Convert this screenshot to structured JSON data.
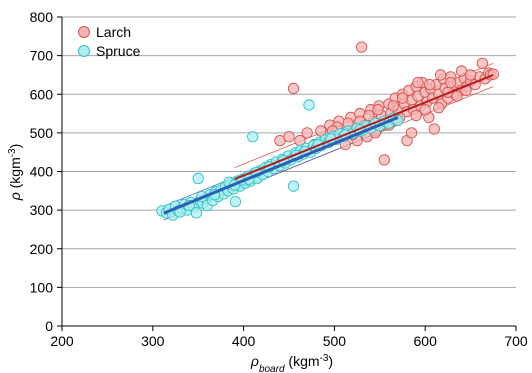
{
  "chart_data": {
    "type": "scatter",
    "title": "",
    "xlabel": {
      "symbol": "ρ",
      "sub": "board",
      "unit": " (kgm",
      "sup": "-3",
      "close": ")"
    },
    "ylabel": {
      "symbol": "ρ",
      "unit": " (kgm",
      "sup": "-3",
      "close": ")"
    },
    "xlim": [
      200,
      700
    ],
    "ylim": [
      0,
      800
    ],
    "xticks": [
      "200",
      "300",
      "400",
      "500",
      "600",
      "700"
    ],
    "yticks": [
      "0",
      "100",
      "200",
      "300",
      "400",
      "500",
      "600",
      "700",
      "800"
    ],
    "grid": "horizontal",
    "legend_position": "top-left",
    "series": [
      {
        "name": "Larch",
        "marker_fill": "#f4b4b4",
        "marker_stroke": "#d9534f",
        "fit_color": "#b71c1c",
        "band_color": "#e53935",
        "fit": {
          "x": [
            390,
            675
          ],
          "y": [
            380,
            650
          ]
        },
        "band_offset": 30,
        "points": [
          [
            440,
            480
          ],
          [
            450,
            490
          ],
          [
            455,
            615
          ],
          [
            462,
            480
          ],
          [
            470,
            500
          ],
          [
            478,
            470
          ],
          [
            485,
            505
          ],
          [
            490,
            475
          ],
          [
            495,
            520
          ],
          [
            500,
            490
          ],
          [
            505,
            530
          ],
          [
            510,
            500
          ],
          [
            512,
            470
          ],
          [
            518,
            540
          ],
          [
            522,
            510
          ],
          [
            525,
            480
          ],
          [
            528,
            550
          ],
          [
            530,
            722
          ],
          [
            533,
            520
          ],
          [
            536,
            490
          ],
          [
            540,
            560
          ],
          [
            543,
            530
          ],
          [
            546,
            505
          ],
          [
            549,
            570
          ],
          [
            552,
            545
          ],
          [
            555,
            430
          ],
          [
            557,
            520
          ],
          [
            560,
            575
          ],
          [
            562,
            550
          ],
          [
            565,
            530
          ],
          [
            567,
            590
          ],
          [
            570,
            560
          ],
          [
            572,
            540
          ],
          [
            575,
            600
          ],
          [
            577,
            575
          ],
          [
            580,
            555
          ],
          [
            582,
            610
          ],
          [
            585,
            585
          ],
          [
            587,
            560
          ],
          [
            590,
            620
          ],
          [
            592,
            595
          ],
          [
            595,
            570
          ],
          [
            597,
            630
          ],
          [
            600,
            605
          ],
          [
            602,
            580
          ],
          [
            604,
            540
          ],
          [
            606,
            615
          ],
          [
            608,
            590
          ],
          [
            610,
            510
          ],
          [
            612,
            625
          ],
          [
            615,
            600
          ],
          [
            618,
            575
          ],
          [
            620,
            640
          ],
          [
            622,
            615
          ],
          [
            625,
            590
          ],
          [
            628,
            645
          ],
          [
            630,
            620
          ],
          [
            633,
            600
          ],
          [
            636,
            630
          ],
          [
            640,
            610
          ],
          [
            643,
            640
          ],
          [
            646,
            620
          ],
          [
            650,
            635
          ],
          [
            655,
            625
          ],
          [
            660,
            645
          ],
          [
            663,
            680
          ],
          [
            666,
            640
          ],
          [
            670,
            655
          ],
          [
            672,
            650
          ],
          [
            675,
            652
          ],
          [
            580,
            480
          ],
          [
            585,
            500
          ],
          [
            575,
            590
          ],
          [
            565,
            570
          ],
          [
            548,
            560
          ],
          [
            538,
            545
          ],
          [
            528,
            530
          ],
          [
            515,
            525
          ],
          [
            503,
            515
          ],
          [
            498,
            505
          ],
          [
            600,
            560
          ],
          [
            590,
            545
          ],
          [
            615,
            565
          ],
          [
            625,
            605
          ],
          [
            635,
            595
          ],
          [
            645,
            610
          ],
          [
            560,
            520
          ],
          [
            545,
            500
          ],
          [
            568,
            535
          ],
          [
            520,
            495
          ],
          [
            592,
            630
          ],
          [
            605,
            625
          ],
          [
            617,
            650
          ],
          [
            628,
            630
          ],
          [
            640,
            660
          ],
          [
            650,
            650
          ]
        ]
      },
      {
        "name": "Spruce",
        "marker_fill": "#aeeef0",
        "marker_stroke": "#2ec4c8",
        "fit_color": "#2b5fb6",
        "band_color": "#2b5fb6",
        "fit": {
          "x": [
            312,
            570
          ],
          "y": [
            292,
            540
          ]
        },
        "band_offset": 18,
        "points": [
          [
            310,
            298
          ],
          [
            315,
            293
          ],
          [
            318,
            302
          ],
          [
            322,
            287
          ],
          [
            325,
            310
          ],
          [
            328,
            298
          ],
          [
            332,
            305
          ],
          [
            335,
            315
          ],
          [
            338,
            300
          ],
          [
            342,
            320
          ],
          [
            345,
            308
          ],
          [
            348,
            293
          ],
          [
            350,
            382
          ],
          [
            352,
            325
          ],
          [
            355,
            318
          ],
          [
            358,
            330
          ],
          [
            360,
            312
          ],
          [
            363,
            340
          ],
          [
            366,
            325
          ],
          [
            369,
            348
          ],
          [
            372,
            335
          ],
          [
            375,
            352
          ],
          [
            378,
            342
          ],
          [
            380,
            360
          ],
          [
            383,
            350
          ],
          [
            386,
            365
          ],
          [
            389,
            355
          ],
          [
            391,
            322
          ],
          [
            393,
            375
          ],
          [
            396,
            362
          ],
          [
            399,
            380
          ],
          [
            402,
            370
          ],
          [
            405,
            388
          ],
          [
            408,
            375
          ],
          [
            410,
            490
          ],
          [
            412,
            395
          ],
          [
            415,
            382
          ],
          [
            418,
            402
          ],
          [
            421,
            392
          ],
          [
            424,
            410
          ],
          [
            427,
            400
          ],
          [
            430,
            418
          ],
          [
            433,
            408
          ],
          [
            436,
            425
          ],
          [
            440,
            415
          ],
          [
            443,
            432
          ],
          [
            446,
            422
          ],
          [
            449,
            440
          ],
          [
            452,
            430
          ],
          [
            455,
            362
          ],
          [
            457,
            448
          ],
          [
            460,
            438
          ],
          [
            463,
            455
          ],
          [
            466,
            445
          ],
          [
            469,
            460
          ],
          [
            472,
            572
          ],
          [
            474,
            450
          ],
          [
            477,
            468
          ],
          [
            480,
            460
          ],
          [
            483,
            475
          ],
          [
            486,
            468
          ],
          [
            490,
            482
          ],
          [
            494,
            475
          ],
          [
            498,
            490
          ],
          [
            502,
            483
          ],
          [
            506,
            498
          ],
          [
            510,
            490
          ],
          [
            515,
            505
          ],
          [
            520,
            498
          ],
          [
            525,
            512
          ],
          [
            530,
            505
          ],
          [
            535,
            518
          ],
          [
            540,
            512
          ],
          [
            545,
            525
          ],
          [
            550,
            518
          ],
          [
            555,
            530
          ],
          [
            560,
            525
          ],
          [
            565,
            538
          ],
          [
            570,
            532
          ],
          [
            330,
            295
          ],
          [
            340,
            312
          ],
          [
            354,
            335
          ],
          [
            368,
            340
          ],
          [
            384,
            372
          ],
          [
            398,
            378
          ],
          [
            414,
            398
          ],
          [
            428,
            412
          ],
          [
            444,
            428
          ],
          [
            458,
            442
          ],
          [
            468,
            452
          ],
          [
            482,
            470
          ],
          [
            496,
            485
          ],
          [
            512,
            495
          ],
          [
            528,
            508
          ],
          [
            390,
            365
          ],
          [
            406,
            380
          ]
        ]
      }
    ]
  }
}
